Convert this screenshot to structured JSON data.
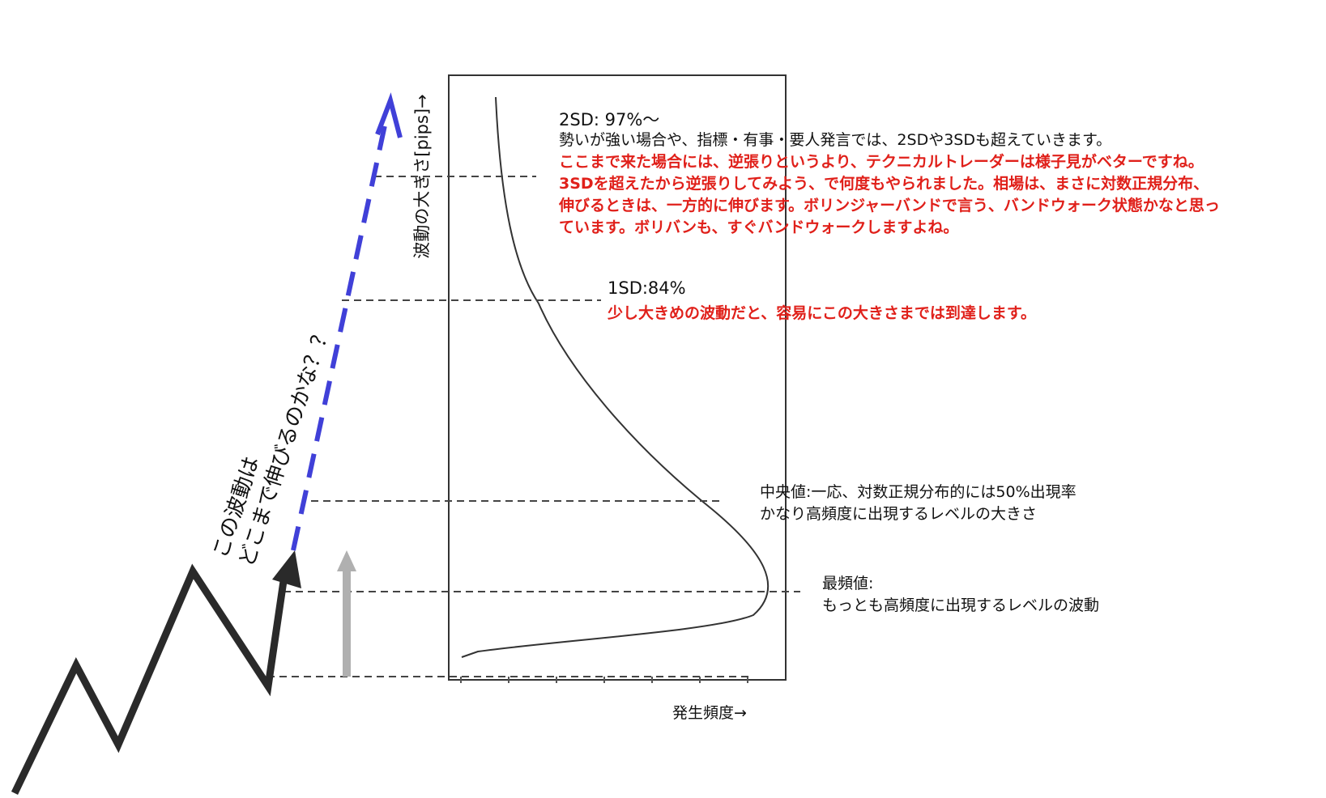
{
  "axes": {
    "y_label": "波動の大きさ[pips]→",
    "x_label": "発生頻度→"
  },
  "question": {
    "line1": "この波動は",
    "line2": "どこまで伸びるのかな？？"
  },
  "annotations": {
    "sd2": {
      "head": "2SD: 97%〜",
      "line1": "勢いが強い場合や、指標・有事・要人発言では、2SDや3SDも超えていきます。",
      "line2": "ここまで来た場合には、逆張りというより、テクニカルトレーダーは様子見がベターですね。",
      "line3": "3SDを超えたから逆張りしてみよう、で何度もやられました。相場は、まさに対数正規分布、",
      "line4": "伸びるときは、一方的に伸びます。ボリンジャーバンドで言う、バンドウォーク状態かなと思っ",
      "line5": "ています。ボリバンも、すぐバンドウォークしますよね。"
    },
    "sd1": {
      "head": "1SD:84%",
      "line1": "少し大きめの波動だと、容易にこの大きさまでは到達します。"
    },
    "median": {
      "line1": "中央値:一応、対数正規分布的には50%出現率",
      "line2": "かなり高頻度に出現するレベルの大きさ"
    },
    "mode": {
      "line1": "最頻値:",
      "line2": "もっとも高頻度に出現するレベルの波動"
    }
  },
  "colors": {
    "text": "#111111",
    "red_text": "#e0201a",
    "blue_arrow": "#4040d8",
    "gray_arrow": "#b0b0b0",
    "zigzag": "#2a2a2a",
    "dashed": "#444444"
  }
}
